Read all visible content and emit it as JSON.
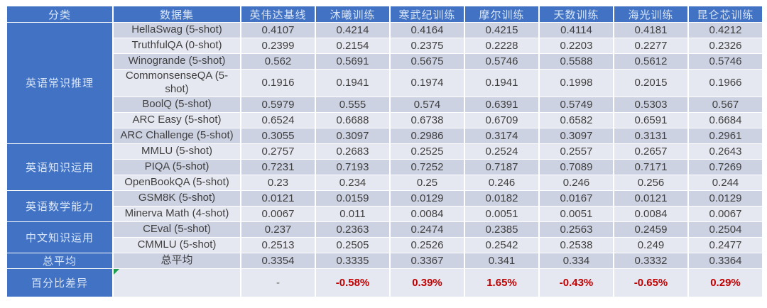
{
  "chart_data": {
    "type": "table",
    "title": "",
    "columns": [
      "分类",
      "数据集",
      "英伟达基线",
      "沐曦训练",
      "寒武纪训练",
      "摩尔训练",
      "天数训练",
      "海光训练",
      "昆仑芯训练"
    ],
    "groups": [
      {
        "category": "英语常识推理",
        "rows": [
          {
            "dataset": "HellaSwag (5-shot)",
            "values": [
              "0.4107",
              "0.4214",
              "0.4164",
              "0.4215",
              "0.4114",
              "0.4181",
              "0.4212"
            ]
          },
          {
            "dataset": "TruthfulQA (0-shot)",
            "values": [
              "0.2399",
              "0.2154",
              "0.2375",
              "0.2228",
              "0.2203",
              "0.2277",
              "0.2326"
            ]
          },
          {
            "dataset": "Winogrande (5-shot)",
            "values": [
              "0.562",
              "0.5691",
              "0.5675",
              "0.5746",
              "0.5588",
              "0.5612",
              "0.5746"
            ]
          },
          {
            "dataset": "CommonsenseQA (5-shot)",
            "values": [
              "0.1916",
              "0.1941",
              "0.1974",
              "0.1941",
              "0.1998",
              "0.2015",
              "0.1966"
            ]
          },
          {
            "dataset": "BoolQ (5-shot)",
            "values": [
              "0.5979",
              "0.555",
              "0.574",
              "0.6391",
              "0.5749",
              "0.5303",
              "0.567"
            ]
          },
          {
            "dataset": "ARC Easy (5-shot)",
            "values": [
              "0.6524",
              "0.6688",
              "0.6738",
              "0.6709",
              "0.6582",
              "0.6591",
              "0.6684"
            ]
          },
          {
            "dataset": "ARC Challenge (5-shot)",
            "values": [
              "0.3055",
              "0.3097",
              "0.2986",
              "0.3174",
              "0.3097",
              "0.3131",
              "0.2961"
            ]
          }
        ]
      },
      {
        "category": "英语知识运用",
        "rows": [
          {
            "dataset": "MMLU (5-shot)",
            "values": [
              "0.2757",
              "0.2683",
              "0.2525",
              "0.2524",
              "0.2557",
              "0.2657",
              "0.2643"
            ]
          },
          {
            "dataset": "PIQA (5-shot)",
            "values": [
              "0.7231",
              "0.7193",
              "0.7252",
              "0.7187",
              "0.7089",
              "0.7171",
              "0.7269"
            ]
          },
          {
            "dataset": "OpenBookQA (5-shot)",
            "values": [
              "0.23",
              "0.234",
              "0.25",
              "0.246",
              "0.246",
              "0.256",
              "0.244"
            ]
          }
        ]
      },
      {
        "category": "英语数学能力",
        "rows": [
          {
            "dataset": "GSM8K (5-shot)",
            "values": [
              "0.0121",
              "0.0159",
              "0.0129",
              "0.0182",
              "0.0167",
              "0.0121",
              "0.0129"
            ]
          },
          {
            "dataset": "Minerva Math (4-shot)",
            "values": [
              "0.0067",
              "0.011",
              "0.0084",
              "0.0051",
              "0.0051",
              "0.0084",
              "0.0067"
            ]
          }
        ]
      },
      {
        "category": "中文知识运用",
        "rows": [
          {
            "dataset": "CEval (5-shot)",
            "values": [
              "0.237",
              "0.2363",
              "0.2474",
              "0.2385",
              "0.2563",
              "0.2459",
              "0.2504"
            ]
          },
          {
            "dataset": "CMMLU (5-shot)",
            "values": [
              "0.2513",
              "0.2505",
              "0.2526",
              "0.2542",
              "0.2538",
              "0.249",
              "0.2477"
            ]
          }
        ]
      }
    ],
    "total_row": {
      "category": "总平均",
      "dataset": "总平均",
      "values": [
        "0.3354",
        "0.3335",
        "0.3367",
        "0.341",
        "0.334",
        "0.3332",
        "0.3364"
      ]
    },
    "diff_row": {
      "category": "百分比差异",
      "dataset": "",
      "values": [
        "-",
        "-0.58%",
        "0.39%",
        "1.65%",
        "-0.43%",
        "-0.65%",
        "0.29%"
      ],
      "has_corner_marker": true
    }
  },
  "colors": {
    "header_bg": "#4272c4",
    "header_text": "#d9e6f7",
    "band_dark": "#cdd2e3",
    "band_light": "#e6e8f1",
    "value_text": "#3f3f3f",
    "diff_text": "#c00000",
    "marker_green": "#1f9c4f",
    "grid": "#ffffff"
  }
}
